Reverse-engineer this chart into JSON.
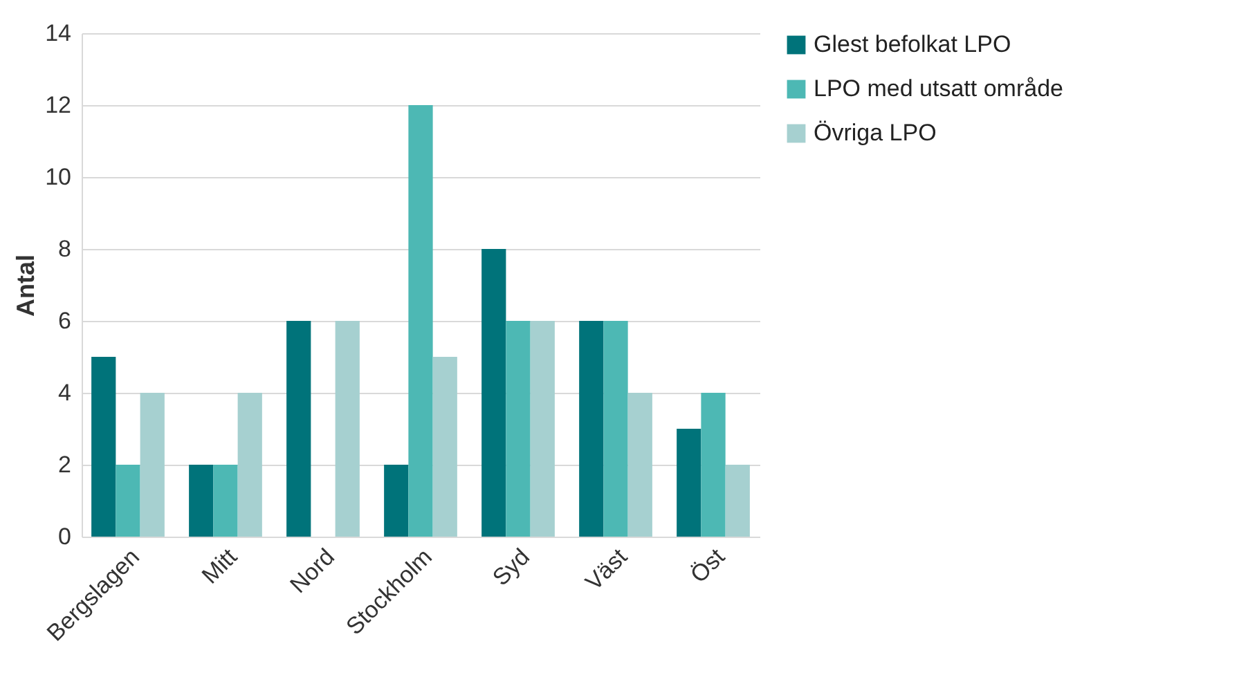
{
  "chart_data": {
    "type": "bar",
    "ylabel": "Antal",
    "categories": [
      "Bergslagen",
      "Mitt",
      "Nord",
      "Stockholm",
      "Syd",
      "Väst",
      "Öst"
    ],
    "series": [
      {
        "name": "Glest befolkat LPO",
        "color": "#00737a",
        "values": [
          5,
          2,
          6,
          2,
          8,
          6,
          3
        ]
      },
      {
        "name": "LPO med utsatt område",
        "color": "#4db8b4",
        "values": [
          2,
          2,
          0,
          12,
          6,
          6,
          4
        ]
      },
      {
        "name": "Övriga LPO",
        "color": "#a6d0d0",
        "values": [
          4,
          4,
          6,
          5,
          6,
          4,
          2
        ]
      }
    ],
    "ylim": [
      0,
      14
    ],
    "yticks": [
      0,
      2,
      4,
      6,
      8,
      10,
      12,
      14
    ],
    "grid": "y",
    "legend": "right"
  }
}
